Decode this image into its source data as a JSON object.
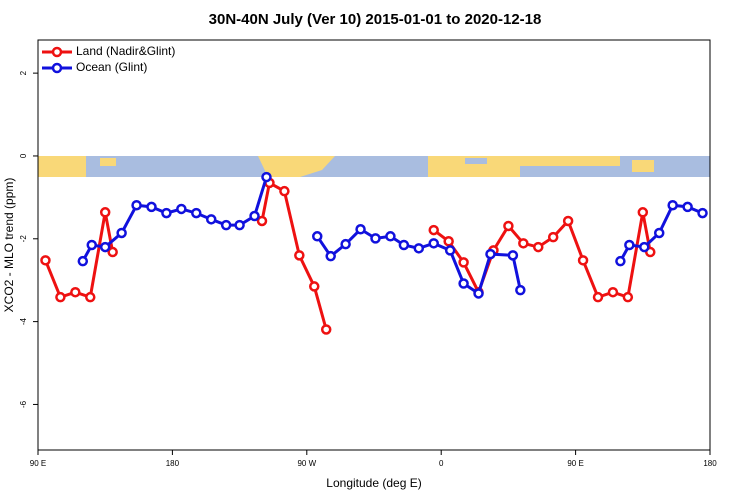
{
  "chart_data": {
    "type": "line",
    "title": "30N-40N July (Ver 10)   2015-01-01 to 2020-12-18",
    "xlabel": "Longitude (deg E)",
    "ylabel": "XCO2 - MLO trend (ppm)",
    "xlim": [
      90,
      540
    ],
    "ylim": [
      -7.1,
      2.8
    ],
    "xticks": [
      {
        "value": 90,
        "label": "90 E"
      },
      180,
      {
        "value": 270,
        "label": "90 W"
      },
      {
        "value": 360,
        "label": "0"
      },
      {
        "value": 450,
        "label": "90 E"
      },
      {
        "value": 540,
        "label": "180"
      }
    ],
    "yticks": [
      -6,
      -4,
      -2,
      0,
      2
    ],
    "legend": "top-left",
    "series": [
      {
        "name": "Land (Nadir&Glint)",
        "color": "#ee1111",
        "x": [
          95,
          105,
          115,
          125,
          135,
          140,
          null,
          240,
          245,
          255,
          265,
          275,
          283,
          null,
          355,
          365,
          375,
          385,
          395,
          405,
          415,
          425,
          435,
          445,
          455,
          465,
          475,
          485,
          495,
          500
        ],
        "values": [
          -2.52,
          -3.41,
          -3.29,
          -3.41,
          -1.36,
          -2.32,
          null,
          -1.57,
          -0.65,
          -0.85,
          -2.4,
          -3.15,
          -4.19,
          null,
          -1.79,
          -2.06,
          -2.57,
          -3.29,
          -2.28,
          -1.69,
          -2.11,
          -2.2,
          -1.96,
          -1.57,
          -2.52,
          -3.41,
          -3.29,
          -3.41,
          -1.36,
          -2.32
        ]
      },
      {
        "name": "Ocean (Glint)",
        "color": "#1111dd",
        "x": [
          120,
          126,
          135,
          146,
          156,
          166,
          176,
          186,
          196,
          206,
          216,
          225,
          235,
          243,
          null,
          277,
          286,
          296,
          306,
          316,
          326,
          335,
          345,
          355,
          366,
          375,
          385,
          393,
          408,
          413,
          null,
          480,
          486,
          496,
          506,
          515,
          525,
          535
        ],
        "values": [
          -2.54,
          -2.15,
          -2.2,
          -1.86,
          -1.19,
          -1.23,
          -1.38,
          -1.28,
          -1.38,
          -1.53,
          -1.67,
          -1.67,
          -1.45,
          -0.51,
          null,
          -1.94,
          -2.42,
          -2.13,
          -1.77,
          -1.99,
          -1.94,
          -2.15,
          -2.23,
          -2.11,
          -2.28,
          -3.08,
          -3.32,
          -2.37,
          -2.4,
          -3.24,
          null,
          -2.54,
          -2.15,
          -2.2,
          -1.86,
          -1.19,
          -1.23,
          -1.38
        ]
      }
    ]
  }
}
